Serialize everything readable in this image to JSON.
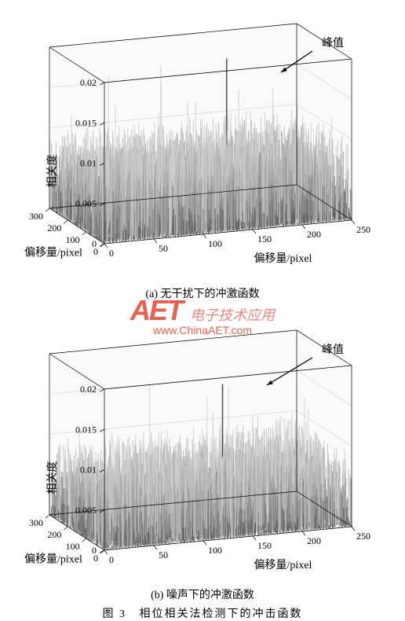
{
  "figure": {
    "number_label": "图 3",
    "title": "相位相关法检测下的冲击函数"
  },
  "watermark": {
    "logo": "AET",
    "cn_text": "电子技术应用",
    "url": "www.ChinaAET.com",
    "color": "#e8604e"
  },
  "chart_a": {
    "type": "3d-surface",
    "subtitle_prefix": "(a)",
    "subtitle": "无干扰下的冲激函数",
    "peak_label": "峰值",
    "zlabel": "相关度",
    "xlabel": "偏移量/pixel",
    "ylabel": "偏移量/pixel",
    "zlim": [
      0,
      0.02
    ],
    "zticks": [
      0,
      0.005,
      0.01,
      0.015,
      0.02
    ],
    "xlim": [
      0,
      300
    ],
    "xticks": [
      0,
      100,
      200,
      300
    ],
    "ylim": [
      0,
      250
    ],
    "yticks": [
      0,
      50,
      100,
      150,
      200,
      250
    ],
    "peak_arrow": {
      "from": [
        380,
        45
      ],
      "to": [
        340,
        72
      ]
    },
    "background_color": "#ffffff",
    "box_line_color": "#000000",
    "grid_color": "#cccccc",
    "surface_color_top": "#c8c8c8",
    "surface_color_bottom": "#555555",
    "label_fontsize": 14,
    "tick_fontsize": 12,
    "noise_seed": 1,
    "noise_amplitude": 0.01,
    "noise_grid_x": 80,
    "noise_grid_y": 80,
    "peak_value": 0.018,
    "peak_pos": [
      0.7,
      0.65
    ]
  },
  "chart_b": {
    "type": "3d-surface",
    "subtitle_prefix": "(b)",
    "subtitle": "噪声下的冲激函数",
    "peak_label": "峰值",
    "zlabel": "相关度",
    "xlabel": "偏移量/pixel",
    "ylabel": "偏移量/pixel",
    "zlim": [
      0,
      0.02
    ],
    "zticks": [
      0,
      0.005,
      0.01,
      0.015,
      0.02
    ],
    "xlim": [
      0,
      300
    ],
    "xticks": [
      0,
      100,
      200,
      300
    ],
    "ylim": [
      0,
      250
    ],
    "yticks": [
      0,
      50,
      100,
      150,
      200,
      250
    ],
    "peak_arrow": {
      "from": [
        380,
        45
      ],
      "to": [
        322,
        80
      ]
    },
    "background_color": "#ffffff",
    "box_line_color": "#000000",
    "grid_color": "#cccccc",
    "surface_color_top": "#c8c8c8",
    "surface_color_bottom": "#555555",
    "label_fontsize": 14,
    "tick_fontsize": 12,
    "noise_seed": 2,
    "noise_amplitude": 0.0095,
    "noise_grid_x": 80,
    "noise_grid_y": 80,
    "peak_value": 0.016,
    "peak_pos": [
      0.64,
      0.62
    ]
  }
}
